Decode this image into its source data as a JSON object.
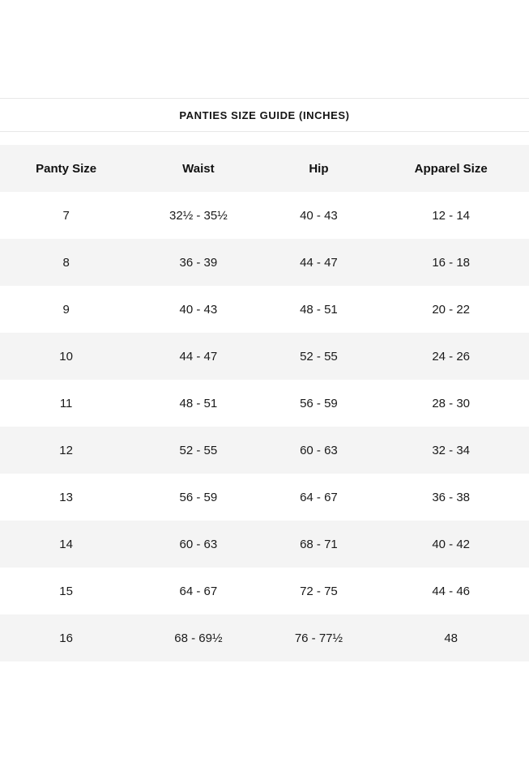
{
  "title": "PANTIES SIZE GUIDE (INCHES)",
  "table": {
    "headers": [
      "Panty Size",
      "Waist",
      "Hip",
      "Apparel Size"
    ],
    "rows": [
      [
        "7",
        "32½ - 35½",
        "40 - 43",
        "12 - 14"
      ],
      [
        "8",
        "36 - 39",
        "44 - 47",
        "16 - 18"
      ],
      [
        "9",
        "40 - 43",
        "48 - 51",
        "20 - 22"
      ],
      [
        "10",
        "44 - 47",
        "52 - 55",
        "24 - 26"
      ],
      [
        "11",
        "48 - 51",
        "56 - 59",
        "28 - 30"
      ],
      [
        "12",
        "52 - 55",
        "60 - 63",
        "32 - 34"
      ],
      [
        "13",
        "56 - 59",
        "64 - 67",
        "36 - 38"
      ],
      [
        "14",
        "60 - 63",
        "68 - 71",
        "40 - 42"
      ],
      [
        "15",
        "64 - 67",
        "72 - 75",
        "44 - 46"
      ],
      [
        "16",
        "68 - 69½",
        "76 - 77½",
        "48"
      ]
    ]
  },
  "colors": {
    "row_alt_background": "#f4f4f4",
    "divider": "#e8e8e8",
    "text": "#141414"
  }
}
